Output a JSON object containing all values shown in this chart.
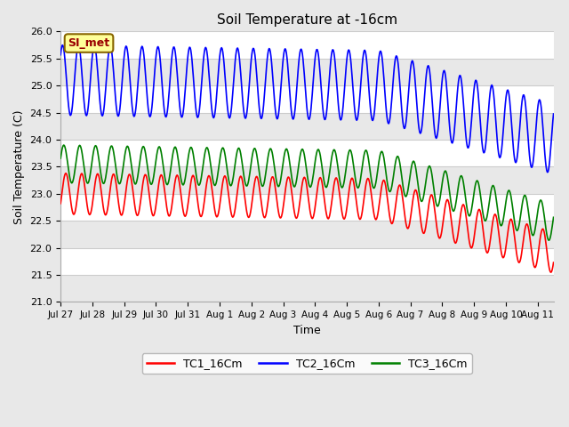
{
  "title": "Soil Temperature at -16cm",
  "xlabel": "Time",
  "ylabel": "Soil Temperature (C)",
  "ylim": [
    21.0,
    26.0
  ],
  "yticks": [
    21.0,
    21.5,
    22.0,
    22.5,
    23.0,
    23.5,
    24.0,
    24.5,
    25.0,
    25.5,
    26.0
  ],
  "bg_color": "#e8e8e8",
  "plot_bg_color": "#ffffff",
  "grid_color": "#dddddd",
  "tc1_color": "red",
  "tc2_color": "blue",
  "tc3_color": "green",
  "legend_labels": [
    "TC1_16Cm",
    "TC2_16Cm",
    "TC3_16Cm"
  ],
  "annotation_text": "SI_met",
  "annotation_bg": "#ffff99",
  "annotation_border": "#886600",
  "x_tick_labels": [
    "Jul 27",
    "Jul 28",
    "Jul 29",
    "Jul 30",
    "Jul 31",
    "Aug 1",
    "Aug 2",
    "Aug 3",
    "Aug 4",
    "Aug 5",
    "Aug 6",
    "Aug 7",
    "Aug 8",
    "Aug 9",
    "Aug 10",
    "Aug 11"
  ],
  "n_points": 800,
  "start_day": 0,
  "end_day": 15.5
}
